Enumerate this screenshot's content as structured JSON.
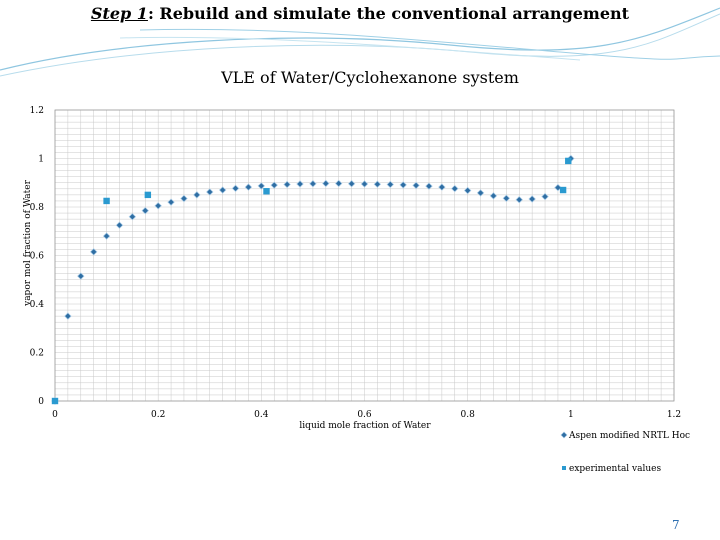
{
  "slide": {
    "title_step": "Step 1",
    "title_rest": ": Rebuild and simulate the conventional arrangement",
    "page_number": "7"
  },
  "colors": {
    "model_series": "#2f6ea3",
    "experimental_series": "#2a9ad0",
    "grid": "#c8c8c8",
    "deco_lines": "#8fc6e0"
  },
  "chart_data": {
    "type": "scatter",
    "title": "VLE of Water/Cyclohexanone system",
    "xlabel": "liquid mole fraction of Water",
    "ylabel": "vapor mol fraction of Water",
    "xlim": [
      0,
      1.2
    ],
    "ylim": [
      0,
      1.2
    ],
    "x_ticks": [
      "0",
      "0.2",
      "0.4",
      "0.6",
      "0.8",
      "1",
      "1.2"
    ],
    "y_ticks": [
      "0",
      "0.2",
      "0.4",
      "0.6",
      "0.8",
      "1",
      "1.2"
    ],
    "grid": true,
    "legend_position": "bottom-right",
    "series": [
      {
        "name": "Aspen modified NRTL Hoc",
        "marker": "diamond",
        "x": [
          0,
          0.025,
          0.05,
          0.075,
          0.1,
          0.125,
          0.15,
          0.175,
          0.2,
          0.225,
          0.25,
          0.275,
          0.3,
          0.325,
          0.35,
          0.375,
          0.4,
          0.425,
          0.45,
          0.475,
          0.5,
          0.525,
          0.55,
          0.575,
          0.6,
          0.625,
          0.65,
          0.675,
          0.7,
          0.725,
          0.75,
          0.775,
          0.8,
          0.825,
          0.85,
          0.875,
          0.9,
          0.925,
          0.95,
          0.975,
          1
        ],
        "y": [
          0,
          0.35,
          0.515,
          0.615,
          0.68,
          0.725,
          0.76,
          0.785,
          0.805,
          0.82,
          0.835,
          0.85,
          0.862,
          0.87,
          0.877,
          0.882,
          0.887,
          0.89,
          0.893,
          0.895,
          0.896,
          0.897,
          0.897,
          0.896,
          0.895,
          0.894,
          0.893,
          0.891,
          0.889,
          0.886,
          0.882,
          0.876,
          0.868,
          0.858,
          0.846,
          0.836,
          0.83,
          0.833,
          0.843,
          0.88,
          1
        ]
      },
      {
        "name": "experimental values",
        "marker": "square",
        "x": [
          0,
          0.1,
          0.18,
          0.41,
          0.985,
          0.995
        ],
        "y": [
          0,
          0.825,
          0.85,
          0.865,
          0.87,
          0.99
        ]
      }
    ]
  }
}
